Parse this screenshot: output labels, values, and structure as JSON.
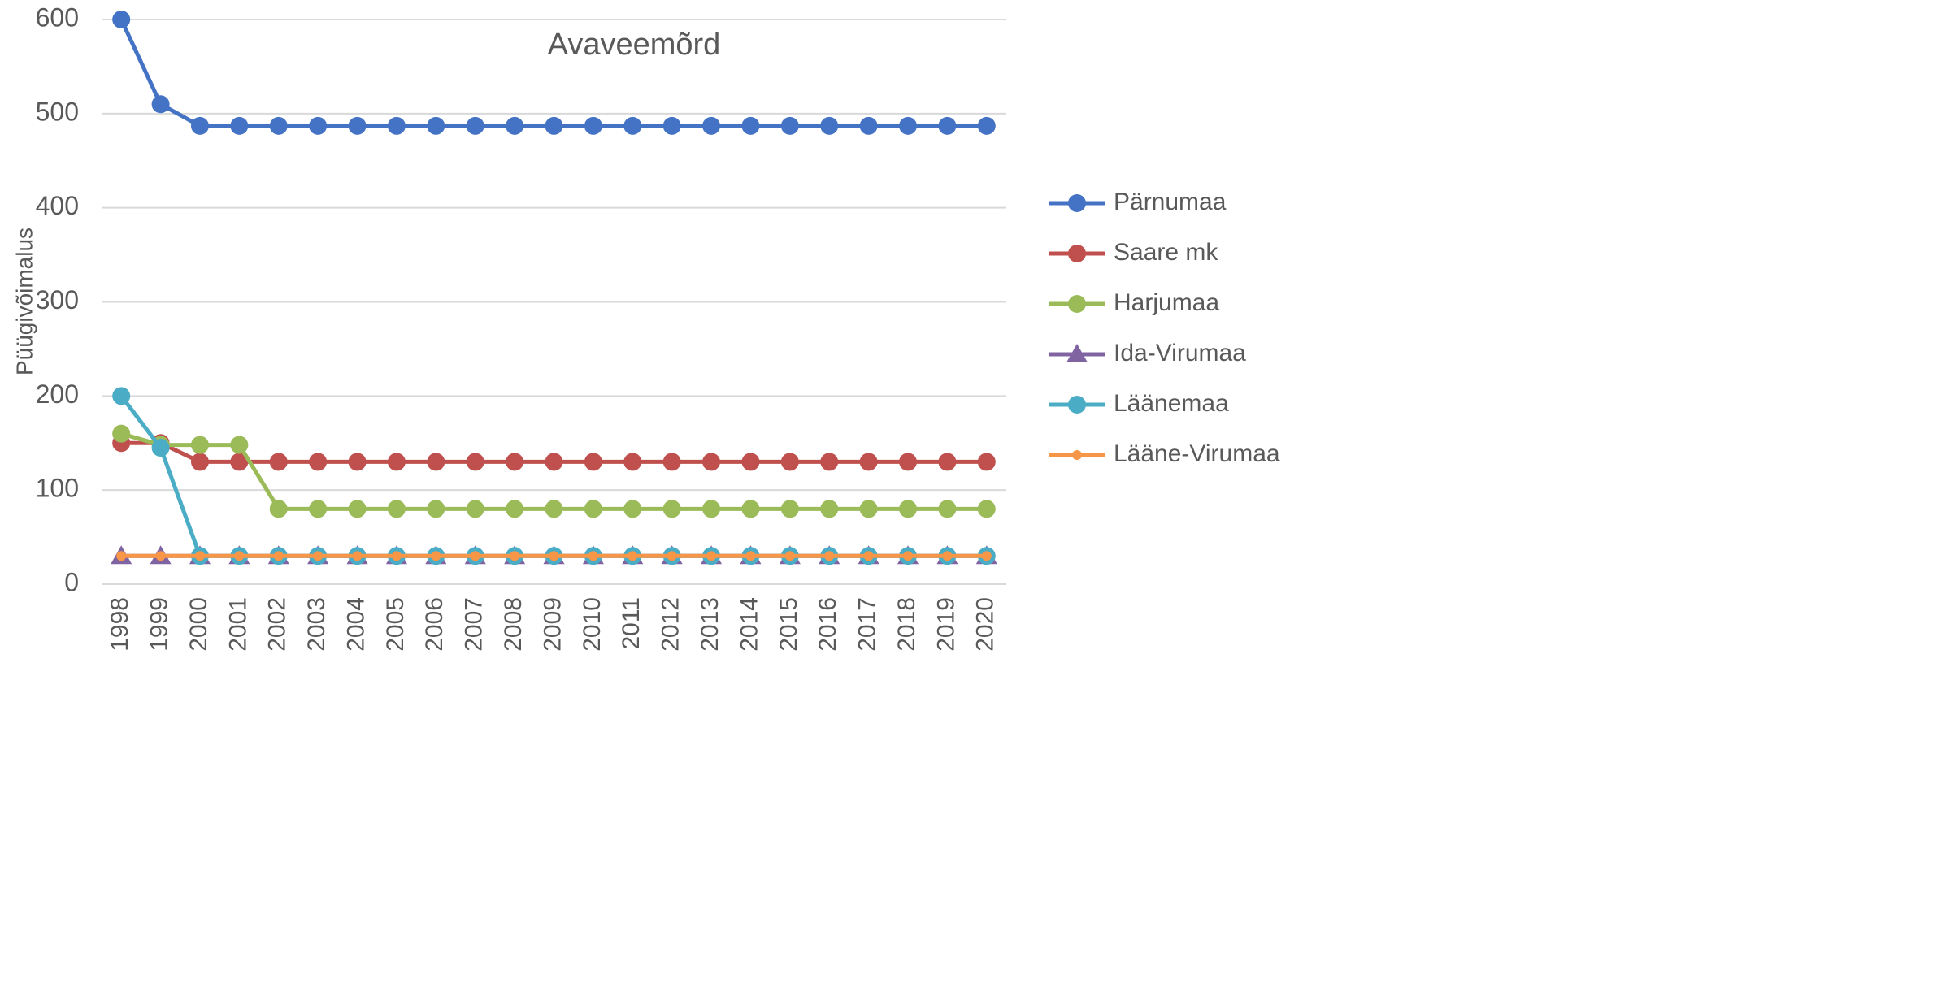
{
  "chart_data": {
    "type": "line",
    "title": "Avaveemõrd",
    "y_label": "Püügivõimalus",
    "categories": [
      "1998",
      "1999",
      "2000",
      "2001",
      "2002",
      "2003",
      "2004",
      "2005",
      "2006",
      "2007",
      "2008",
      "2009",
      "2010",
      "2011",
      "2012",
      "2013",
      "2014",
      "2015",
      "2016",
      "2017",
      "2018",
      "2019",
      "2020"
    ],
    "series": [
      {
        "name": "Pärnumaa",
        "color": "#4472c4",
        "marker": "circle",
        "values": [
          600,
          510,
          487,
          487,
          487,
          487,
          487,
          487,
          487,
          487,
          487,
          487,
          487,
          487,
          487,
          487,
          487,
          487,
          487,
          487,
          487,
          487,
          487
        ]
      },
      {
        "name": "Saare mk",
        "color": "#c0504d",
        "marker": "circle",
        "values": [
          150,
          150,
          130,
          130,
          130,
          130,
          130,
          130,
          130,
          130,
          130,
          130,
          130,
          130,
          130,
          130,
          130,
          130,
          130,
          130,
          130,
          130,
          130
        ]
      },
      {
        "name": "Harjumaa",
        "color": "#9bbb59",
        "marker": "circle",
        "values": [
          160,
          148,
          148,
          148,
          80,
          80,
          80,
          80,
          80,
          80,
          80,
          80,
          80,
          80,
          80,
          80,
          80,
          80,
          80,
          80,
          80,
          80,
          80
        ]
      },
      {
        "name": "Ida-Virumaa",
        "color": "#8064a2",
        "marker": "triangle",
        "values": [
          30,
          30,
          30,
          30,
          30,
          30,
          30,
          30,
          30,
          30,
          30,
          30,
          30,
          30,
          30,
          30,
          30,
          30,
          30,
          30,
          30,
          30,
          30
        ]
      },
      {
        "name": "Läänemaa",
        "color": "#4bacc6",
        "marker": "circle",
        "values": [
          200,
          145,
          30,
          30,
          30,
          30,
          30,
          30,
          30,
          30,
          30,
          30,
          30,
          30,
          30,
          30,
          30,
          30,
          30,
          30,
          30,
          30,
          30
        ]
      },
      {
        "name": "Lääne-Virumaa",
        "color": "#f79646",
        "marker": "small-circle",
        "values": [
          30,
          30,
          30,
          30,
          30,
          30,
          30,
          30,
          30,
          30,
          30,
          30,
          30,
          30,
          30,
          30,
          30,
          30,
          30,
          30,
          30,
          30,
          30
        ]
      }
    ],
    "ylim": [
      0,
      600
    ],
    "yticks": [
      0,
      100,
      200,
      300,
      400,
      500,
      600
    ],
    "grid": true,
    "legend": "right"
  }
}
